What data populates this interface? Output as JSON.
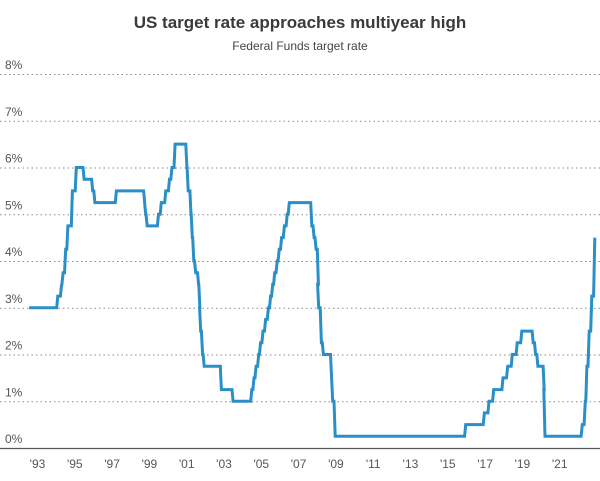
{
  "chart_data": {
    "type": "line",
    "title": "US target rate approaches multiyear high",
    "subtitle": "Federal Funds target rate",
    "xlabel": "",
    "ylabel": "",
    "ylim": [
      0,
      8
    ],
    "xlim": [
      1992.5,
      2022.9
    ],
    "y_ticks": [
      0,
      1,
      2,
      3,
      4,
      5,
      6,
      7,
      8
    ],
    "y_tick_labels": [
      "0%",
      "1%",
      "2%",
      "3%",
      "4%",
      "5%",
      "6%",
      "7%",
      "8%"
    ],
    "x_ticks": [
      1993,
      1995,
      1997,
      1999,
      2001,
      2003,
      2005,
      2007,
      2009,
      2011,
      2013,
      2015,
      2017,
      2019,
      2021
    ],
    "x_tick_labels": [
      "'93",
      "'95",
      "'97",
      "'99",
      "'01",
      "'03",
      "'05",
      "'07",
      "'09",
      "'11",
      "'13",
      "'15",
      "'17",
      "'19",
      "'21"
    ],
    "grid": true,
    "legend": "none",
    "series": [
      {
        "name": "Federal Funds target rate",
        "color": "#2a8fc6",
        "step": true,
        "x": [
          1992.55,
          1994.09,
          1994.29,
          1994.31,
          1994.37,
          1994.51,
          1994.63,
          1994.87,
          1995.08,
          1995.5,
          1995.96,
          1996.08,
          1997.23,
          1998.75,
          1998.8,
          1998.88,
          1999.49,
          1999.64,
          1999.88,
          2000.08,
          2000.21,
          2000.38,
          2001.01,
          2001.08,
          2001.23,
          2001.3,
          2001.38,
          2001.48,
          2001.64,
          2001.71,
          2001.75,
          2001.85,
          2001.94,
          2002.86,
          2003.49,
          2004.49,
          2004.61,
          2004.72,
          2004.86,
          2004.96,
          2005.09,
          2005.23,
          2005.38,
          2005.5,
          2005.61,
          2005.72,
          2005.85,
          2005.96,
          2006.09,
          2006.24,
          2006.39,
          2006.5,
          2007.71,
          2007.83,
          2007.94,
          2008.06,
          2008.08,
          2008.22,
          2008.33,
          2008.77,
          2008.83,
          2008.96,
          2015.96,
          2016.96,
          2017.21,
          2017.46,
          2017.96,
          2018.21,
          2018.46,
          2018.72,
          2018.97,
          2019.58,
          2019.71,
          2019.83,
          2020.17,
          2020.21,
          2022.21,
          2022.37,
          2022.46,
          2022.58,
          2022.72,
          2022.88
        ],
        "values": [
          3.0,
          3.25,
          3.5,
          3.5,
          3.75,
          4.25,
          4.75,
          5.5,
          6.0,
          5.75,
          5.5,
          5.25,
          5.5,
          5.25,
          5.0,
          4.75,
          5.0,
          5.25,
          5.5,
          5.75,
          6.0,
          6.5,
          6.0,
          5.5,
          5.0,
          4.5,
          4.0,
          3.75,
          3.5,
          3.0,
          2.5,
          2.0,
          1.75,
          1.25,
          1.0,
          1.25,
          1.5,
          1.75,
          2.0,
          2.25,
          2.5,
          2.75,
          3.0,
          3.25,
          3.5,
          3.75,
          4.0,
          4.25,
          4.5,
          4.75,
          5.0,
          5.25,
          4.75,
          4.5,
          4.25,
          3.5,
          3.0,
          2.25,
          2.0,
          1.5,
          1.0,
          0.25,
          0.5,
          0.75,
          1.0,
          1.25,
          1.5,
          1.75,
          2.0,
          2.25,
          2.5,
          2.25,
          2.0,
          1.75,
          1.25,
          0.25,
          0.5,
          1.0,
          1.75,
          2.5,
          3.25,
          4.5
        ]
      }
    ]
  }
}
